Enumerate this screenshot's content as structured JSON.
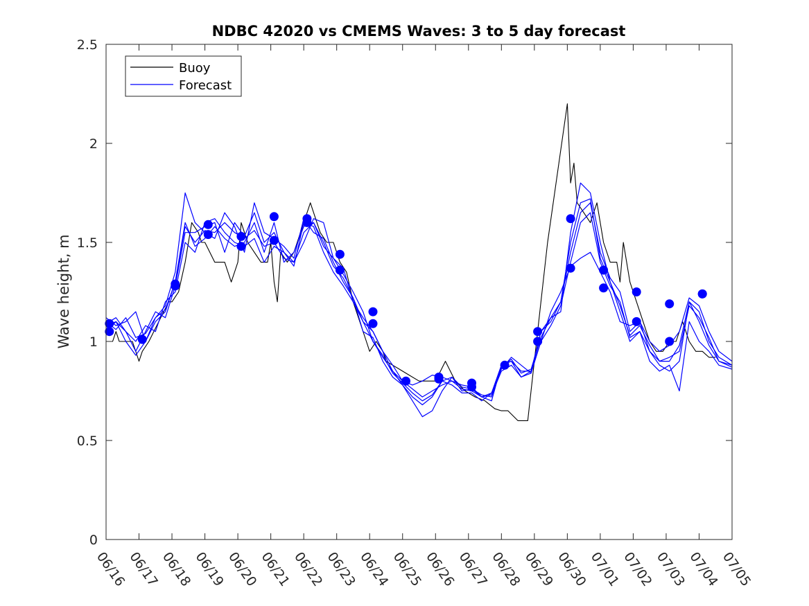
{
  "chart_data": {
    "type": "line",
    "title": "NDBC 42020 vs CMEMS Waves: 3 to 5 day forecast",
    "xlabel": "",
    "ylabel": "Wave height, m",
    "x_tick_labels": [
      "06/16",
      "06/17",
      "06/18",
      "06/19",
      "06/20",
      "06/21",
      "06/22",
      "06/23",
      "06/24",
      "06/25",
      "06/26",
      "06/27",
      "06/28",
      "06/29",
      "06/30",
      "07/01",
      "07/02",
      "07/03",
      "07/04",
      "07/05"
    ],
    "y_tick_labels": [
      "0",
      "0.5",
      "1",
      "1.5",
      "2",
      "2.5"
    ],
    "xlim_days": [
      0,
      19
    ],
    "ylim": [
      0,
      2.5
    ],
    "grid": false,
    "legend_position": "top-left",
    "legend": [
      {
        "name": "Buoy",
        "color": "#000000"
      },
      {
        "name": "Forecast",
        "color": "#0000ff"
      }
    ],
    "series": [
      {
        "name": "Buoy",
        "color": "#000000",
        "x": [
          0,
          0.2,
          0.3,
          0.4,
          0.6,
          0.8,
          1.0,
          1.1,
          1.3,
          1.6,
          1.9,
          2.0,
          2.2,
          2.4,
          2.6,
          2.8,
          2.9,
          3.0,
          3.3,
          3.6,
          3.8,
          4.0,
          4.1,
          4.3,
          4.5,
          4.7,
          4.9,
          5.0,
          5.1,
          5.2,
          5.3,
          5.5,
          5.7,
          5.8,
          6.0,
          6.2,
          6.5,
          6.7,
          6.9,
          7.1,
          7.3,
          7.5,
          7.7,
          7.9,
          8.0,
          8.2,
          8.4,
          8.5,
          8.7,
          8.9,
          9.0,
          9.2,
          9.5,
          9.8,
          10.0,
          10.3,
          10.6,
          10.9,
          11.2,
          11.5,
          11.8,
          12.0,
          12.2,
          12.5,
          12.8,
          13.0,
          13.2,
          13.4,
          14.0,
          14.1,
          14.2,
          14.3,
          14.5,
          14.7,
          14.9,
          15.1,
          15.3,
          15.5,
          15.6,
          15.7,
          15.9,
          16.1,
          16.3,
          16.5,
          16.7,
          16.9,
          17.1,
          17.3,
          17.5,
          17.7,
          17.9,
          18.1,
          18.3,
          18.5
        ],
        "y": [
          1.0,
          1.0,
          1.05,
          1.0,
          1.0,
          1.0,
          0.9,
          0.95,
          1.0,
          1.1,
          1.2,
          1.2,
          1.25,
          1.4,
          1.6,
          1.55,
          1.5,
          1.5,
          1.4,
          1.4,
          1.3,
          1.4,
          1.6,
          1.5,
          1.45,
          1.4,
          1.4,
          1.5,
          1.3,
          1.2,
          1.45,
          1.4,
          1.45,
          1.5,
          1.6,
          1.7,
          1.55,
          1.5,
          1.5,
          1.4,
          1.35,
          1.2,
          1.1,
          1.0,
          0.95,
          1.0,
          0.95,
          0.9,
          0.88,
          0.86,
          0.85,
          0.83,
          0.8,
          0.8,
          0.8,
          0.9,
          0.8,
          0.75,
          0.72,
          0.7,
          0.66,
          0.65,
          0.65,
          0.6,
          0.6,
          0.9,
          1.2,
          1.5,
          2.2,
          1.8,
          1.9,
          1.7,
          1.65,
          1.6,
          1.7,
          1.5,
          1.4,
          1.4,
          1.3,
          1.5,
          1.3,
          1.2,
          1.1,
          1.0,
          0.95,
          0.95,
          1.0,
          1.0,
          1.1,
          1.0,
          0.95,
          0.95,
          0.92,
          0.92
        ]
      },
      {
        "name": "Forecast",
        "color": "#0000ff",
        "x": [
          0,
          0.3,
          0.6,
          0.9,
          1.2,
          1.5,
          1.8,
          2.1,
          2.4,
          2.7,
          3.0,
          3.3,
          3.6,
          3.9,
          4.2,
          4.5,
          4.8,
          5.1,
          5.4,
          5.7,
          6.0,
          6.3,
          6.6,
          6.9,
          7.2,
          7.5,
          7.8,
          8.1,
          8.4,
          8.7,
          9.0,
          9.3,
          9.6,
          9.9,
          10.2,
          10.5,
          10.8,
          11.1,
          11.4,
          11.7,
          12.0,
          12.3,
          12.6,
          12.9,
          13.2,
          13.5,
          13.8,
          14.1,
          14.4,
          14.7,
          15.0,
          15.3,
          15.6,
          15.9,
          16.2,
          16.5,
          16.8,
          17.1,
          17.4,
          17.7,
          18.0,
          18.3,
          18.6,
          19.0
        ],
        "y": [
          1.09,
          1.12,
          1.05,
          0.95,
          1.05,
          1.15,
          1.12,
          1.28,
          1.55,
          1.55,
          1.58,
          1.6,
          1.45,
          1.6,
          1.53,
          1.65,
          1.5,
          1.55,
          1.45,
          1.4,
          1.5,
          1.62,
          1.6,
          1.42,
          1.37,
          1.2,
          1.1,
          1.05,
          0.95,
          0.85,
          0.8,
          0.78,
          0.8,
          0.83,
          0.82,
          0.8,
          0.78,
          0.77,
          0.72,
          0.74,
          0.88,
          0.9,
          0.85,
          0.85,
          1.05,
          1.1,
          1.2,
          1.45,
          1.65,
          1.7,
          1.45,
          1.32,
          1.25,
          1.05,
          1.1,
          1.0,
          0.95,
          0.98,
          1.05,
          1.22,
          1.18,
          1.05,
          0.95,
          0.9
        ]
      },
      {
        "name": "Forecast",
        "color": "#0000ff",
        "x": [
          0,
          0.3,
          0.6,
          0.9,
          1.2,
          1.5,
          1.8,
          2.1,
          2.4,
          2.7,
          3.0,
          3.3,
          3.6,
          3.9,
          4.2,
          4.5,
          4.8,
          5.1,
          5.4,
          5.7,
          6.0,
          6.3,
          6.6,
          6.9,
          7.2,
          7.5,
          7.8,
          8.1,
          8.4,
          8.7,
          9.0,
          9.3,
          9.6,
          9.9,
          10.2,
          10.5,
          10.8,
          11.1,
          11.4,
          11.7,
          12.0,
          12.3,
          12.6,
          12.9,
          13.2,
          13.5,
          13.8,
          14.1,
          14.4,
          14.7,
          15.0,
          15.3,
          15.6,
          15.9,
          16.2,
          16.5,
          16.8,
          17.1,
          17.4,
          17.7,
          18.0,
          18.3,
          18.6,
          19.0
        ],
        "y": [
          1.05,
          1.1,
          1.0,
          0.93,
          1.0,
          1.1,
          1.15,
          1.3,
          1.6,
          1.48,
          1.52,
          1.58,
          1.52,
          1.48,
          1.5,
          1.6,
          1.45,
          1.6,
          1.4,
          1.45,
          1.58,
          1.6,
          1.48,
          1.42,
          1.34,
          1.25,
          1.15,
          1.0,
          0.92,
          0.85,
          0.78,
          0.7,
          0.62,
          0.65,
          0.75,
          0.82,
          0.77,
          0.76,
          0.72,
          0.7,
          0.88,
          0.9,
          0.82,
          0.85,
          1.0,
          1.15,
          1.25,
          1.38,
          1.42,
          1.45,
          1.35,
          1.25,
          1.1,
          1.08,
          1.1,
          0.95,
          0.88,
          0.85,
          0.9,
          1.2,
          1.15,
          1.0,
          0.92,
          0.88
        ]
      },
      {
        "name": "Forecast",
        "color": "#0000ff",
        "x": [
          0,
          0.3,
          0.6,
          0.9,
          1.2,
          1.5,
          1.8,
          2.1,
          2.4,
          2.7,
          3.0,
          3.3,
          3.6,
          3.9,
          4.2,
          4.5,
          4.8,
          5.1,
          5.4,
          5.7,
          6.0,
          6.3,
          6.6,
          6.9,
          7.2,
          7.5,
          7.8,
          8.1,
          8.4,
          8.7,
          9.0,
          9.3,
          9.6,
          9.9,
          10.2,
          10.5,
          10.8,
          11.1,
          11.4,
          11.7,
          12.0,
          12.3,
          12.6,
          12.9,
          13.2,
          13.5,
          13.8,
          14.1,
          14.4,
          14.7,
          15.0,
          15.3,
          15.6,
          15.9,
          16.2,
          16.5,
          16.8,
          17.1,
          17.4,
          17.7,
          18.0,
          18.3,
          18.6,
          19.0
        ],
        "y": [
          1.12,
          1.08,
          1.1,
          1.15,
          1.0,
          1.12,
          1.18,
          1.35,
          1.75,
          1.6,
          1.55,
          1.52,
          1.65,
          1.58,
          1.45,
          1.7,
          1.55,
          1.52,
          1.48,
          1.42,
          1.62,
          1.55,
          1.52,
          1.4,
          1.3,
          1.22,
          1.05,
          1.02,
          0.9,
          0.82,
          0.78,
          0.72,
          0.68,
          0.72,
          0.8,
          0.78,
          0.74,
          0.74,
          0.7,
          0.74,
          0.86,
          0.92,
          0.88,
          0.84,
          1.05,
          1.12,
          1.15,
          1.55,
          1.8,
          1.75,
          1.5,
          1.3,
          1.15,
          1.0,
          1.05,
          0.9,
          0.85,
          0.88,
          0.75,
          1.1,
          1.0,
          0.95,
          0.88,
          0.86
        ]
      },
      {
        "name": "Forecast",
        "color": "#0000ff",
        "x": [
          0,
          0.3,
          0.6,
          0.9,
          1.2,
          1.5,
          1.8,
          2.1,
          2.4,
          2.7,
          3.0,
          3.3,
          3.6,
          3.9,
          4.2,
          4.5,
          4.8,
          5.1,
          5.4,
          5.7,
          6.0,
          6.3,
          6.6,
          6.9,
          7.2,
          7.5,
          7.8,
          8.1,
          8.4,
          8.7,
          9.0,
          9.3,
          9.6,
          9.9,
          10.2,
          10.5,
          10.8,
          11.1,
          11.4,
          11.7,
          12.0,
          12.3,
          12.6,
          12.9,
          13.2,
          13.5,
          13.8,
          14.1,
          14.4,
          14.7,
          15.0,
          15.3,
          15.6,
          15.9,
          16.2,
          16.5,
          16.8,
          17.1,
          17.4,
          17.7,
          18.0,
          18.3,
          18.6,
          19.0
        ],
        "y": [
          1.08,
          1.1,
          1.05,
          1.0,
          1.08,
          1.05,
          1.2,
          1.25,
          1.5,
          1.45,
          1.6,
          1.62,
          1.55,
          1.5,
          1.48,
          1.52,
          1.4,
          1.48,
          1.45,
          1.38,
          1.6,
          1.58,
          1.45,
          1.35,
          1.28,
          1.2,
          1.12,
          1.05,
          0.95,
          0.88,
          0.8,
          0.76,
          0.72,
          0.75,
          0.78,
          0.8,
          0.76,
          0.75,
          0.72,
          0.73,
          0.85,
          0.88,
          0.82,
          0.84,
          1.0,
          1.08,
          1.18,
          1.4,
          1.6,
          1.65,
          1.4,
          1.28,
          1.2,
          1.02,
          1.05,
          0.95,
          0.9,
          0.92,
          0.95,
          1.18,
          1.12,
          1.02,
          0.9,
          0.88
        ]
      },
      {
        "name": "Forecast",
        "color": "#0000ff",
        "x": [
          0,
          0.3,
          0.6,
          0.9,
          1.2,
          1.5,
          1.8,
          2.1,
          2.4,
          2.7,
          3.0,
          3.3,
          3.6,
          3.9,
          4.2,
          4.5,
          4.8,
          5.1,
          5.4,
          5.7,
          6.0,
          6.3,
          6.6,
          6.9,
          7.2,
          7.5,
          7.8,
          8.1,
          8.4,
          8.7,
          9.0,
          9.3,
          9.6,
          9.9,
          10.2,
          10.5,
          10.8,
          11.1,
          11.4,
          11.7,
          12.0,
          12.3,
          12.6,
          12.9,
          13.2,
          13.5,
          13.8,
          14.1,
          14.4,
          14.7,
          15.0,
          15.3,
          15.6,
          15.9,
          16.2,
          16.5,
          16.8,
          17.1,
          17.4,
          17.7,
          18.0,
          18.3,
          18.6,
          19.0
        ],
        "y": [
          1.1,
          1.06,
          1.12,
          1.02,
          1.04,
          1.12,
          1.16,
          1.3,
          1.58,
          1.5,
          1.56,
          1.55,
          1.6,
          1.55,
          1.52,
          1.56,
          1.48,
          1.5,
          1.42,
          1.4,
          1.55,
          1.6,
          1.5,
          1.38,
          1.32,
          1.22,
          1.1,
          1.0,
          0.93,
          0.84,
          0.79,
          0.74,
          0.7,
          0.73,
          0.8,
          0.82,
          0.75,
          0.76,
          0.73,
          0.72,
          0.87,
          0.91,
          0.84,
          0.86,
          1.02,
          1.12,
          1.2,
          1.5,
          1.7,
          1.72,
          1.42,
          1.3,
          1.18,
          1.03,
          1.08,
          0.98,
          0.9,
          0.9,
          0.98,
          1.2,
          1.1,
          0.98,
          0.9,
          0.87
        ]
      }
    ],
    "markers": {
      "name": "Forecast",
      "color": "#0000ff",
      "x": [
        0.1,
        0.1,
        1.1,
        2.1,
        2.1,
        3.1,
        3.1,
        4.1,
        4.1,
        5.1,
        5.1,
        6.1,
        6.1,
        7.1,
        7.1,
        8.1,
        8.1,
        9.1,
        10.1,
        10.1,
        11.1,
        11.1,
        12.1,
        13.1,
        13.1,
        14.1,
        14.1,
        15.1,
        15.1,
        16.1,
        16.1,
        17.1,
        17.1,
        18.1,
        18.1
      ],
      "y": [
        1.09,
        1.05,
        1.01,
        1.29,
        1.28,
        1.59,
        1.54,
        1.53,
        1.48,
        1.63,
        1.51,
        1.62,
        1.6,
        1.44,
        1.36,
        1.15,
        1.09,
        0.8,
        0.82,
        0.81,
        0.79,
        0.77,
        0.88,
        1.05,
        1.0,
        1.62,
        1.37,
        1.36,
        1.27,
        1.25,
        1.1,
        1.19,
        1.0,
        1.24,
        1.24
      ]
    }
  }
}
